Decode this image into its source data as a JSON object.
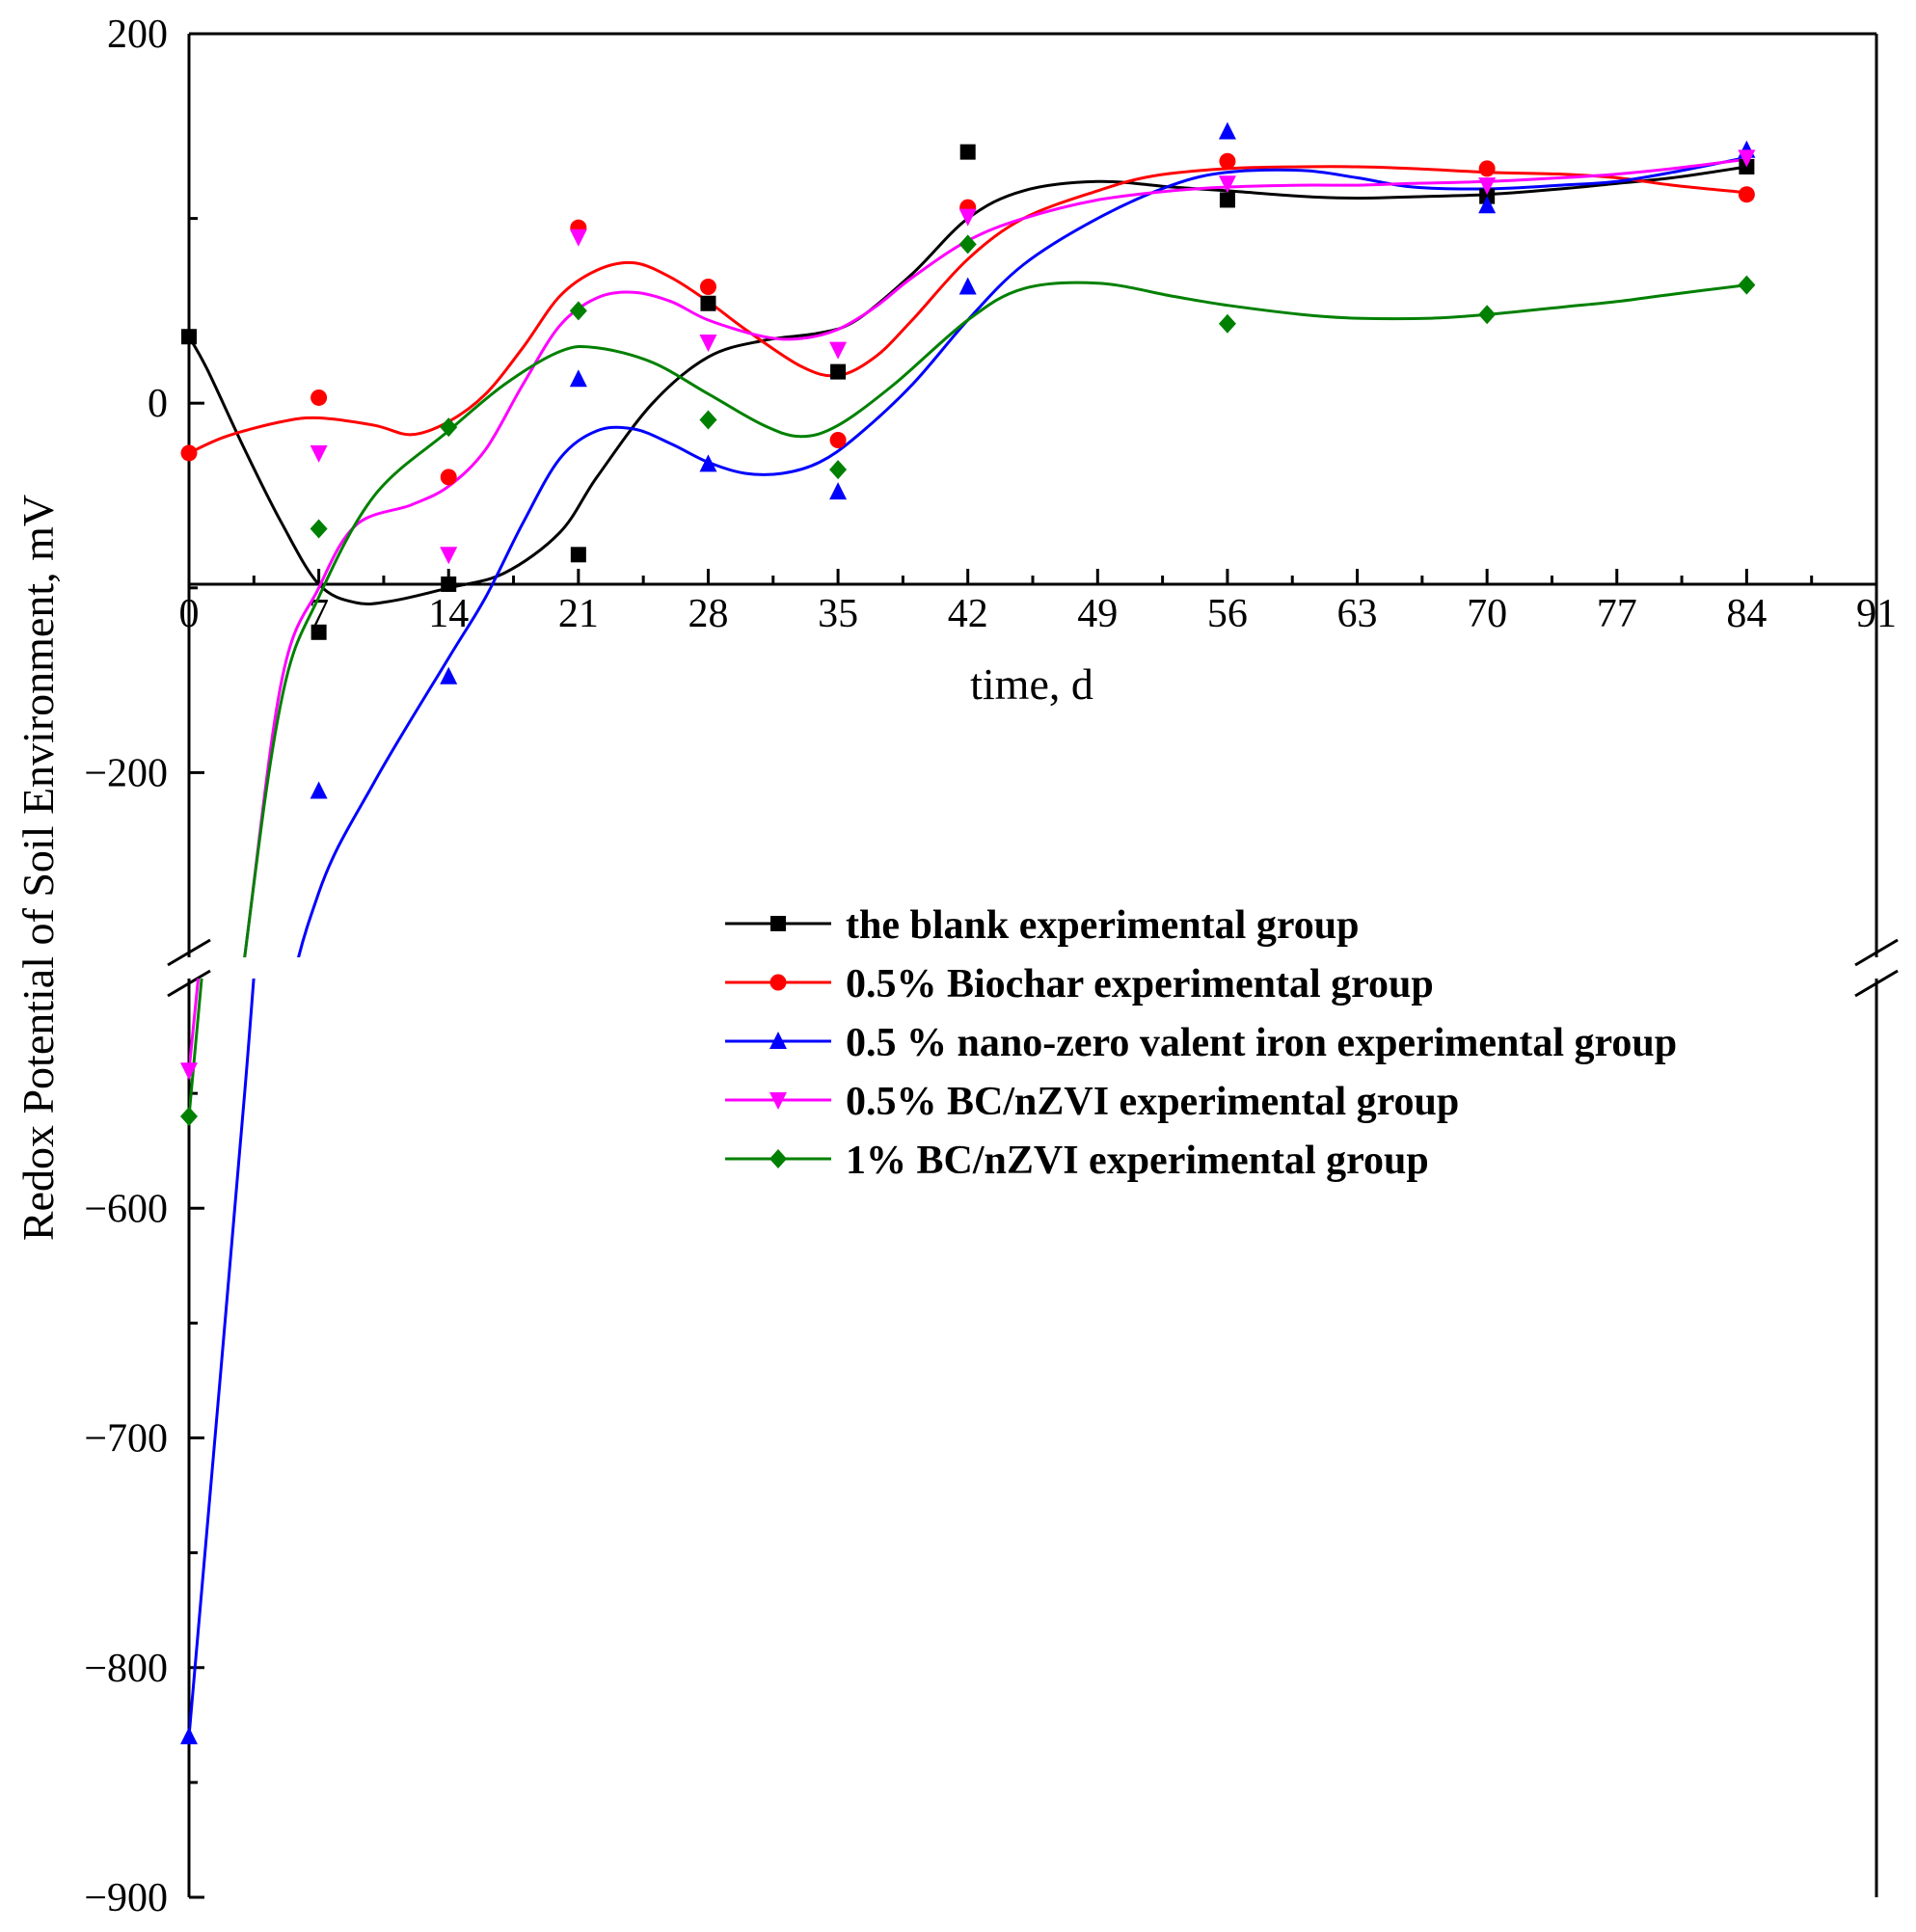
{
  "chart_data": {
    "type": "line",
    "title": "",
    "xlabel": "time, d",
    "ylabel": "Redox Potential of Soil Environment, mV",
    "x_ticks": [
      "0",
      "7",
      "14",
      "21",
      "28",
      "35",
      "42",
      "49",
      "56",
      "63",
      "70",
      "77",
      "84",
      "91"
    ],
    "x_tick_values": [
      0,
      7,
      14,
      21,
      28,
      35,
      42,
      49,
      56,
      63,
      70,
      77,
      84,
      91
    ],
    "xlim": [
      0,
      91
    ],
    "y_axis_break": true,
    "ylim_upper": [
      -300,
      200
    ],
    "ylim_lower": [
      -900,
      -500
    ],
    "y_ticks_upper": [
      "200",
      "0",
      "−200"
    ],
    "y_tick_values_upper": [
      200,
      0,
      -200
    ],
    "y_ticks_lower": [
      "−600",
      "−700",
      "−800",
      "−900"
    ],
    "y_tick_values_lower": [
      -600,
      -700,
      -800,
      -900
    ],
    "legend_position": "center-right",
    "x": [
      0,
      7,
      14,
      21,
      28,
      35,
      42,
      56,
      70,
      84
    ],
    "series": [
      {
        "name": "the blank experimental group",
        "color": "#000000",
        "marker": "square",
        "values": [
          36,
          -124,
          -98,
          -82,
          54,
          17,
          136,
          110,
          112,
          128
        ],
        "curve": [
          [
            0,
            36
          ],
          [
            1,
            18
          ],
          [
            3,
            -25
          ],
          [
            5,
            -65
          ],
          [
            7,
            -98
          ],
          [
            9,
            -108
          ],
          [
            11,
            -107
          ],
          [
            14,
            -100
          ],
          [
            17,
            -92
          ],
          [
            20,
            -70
          ],
          [
            22,
            -40
          ],
          [
            25,
            0
          ],
          [
            28,
            25
          ],
          [
            31,
            34
          ],
          [
            34,
            38
          ],
          [
            36,
            45
          ],
          [
            39,
            70
          ],
          [
            42,
            100
          ],
          [
            45,
            115
          ],
          [
            49,
            120
          ],
          [
            53,
            117
          ],
          [
            56,
            115
          ],
          [
            60,
            112
          ],
          [
            63,
            111
          ],
          [
            67,
            112
          ],
          [
            70,
            113
          ],
          [
            74,
            116
          ],
          [
            77,
            119
          ],
          [
            80,
            122
          ],
          [
            84,
            128
          ]
        ]
      },
      {
        "name": "0.5% Biochar experimental group",
        "color": "#ff0000",
        "marker": "circle",
        "values": [
          -27,
          3,
          -40,
          95,
          63,
          -20,
          106,
          131,
          127,
          113
        ],
        "curve": [
          [
            0,
            -27
          ],
          [
            2,
            -18
          ],
          [
            5,
            -10
          ],
          [
            7,
            -8
          ],
          [
            10,
            -12
          ],
          [
            12,
            -17
          ],
          [
            14,
            -10
          ],
          [
            16,
            5
          ],
          [
            18,
            30
          ],
          [
            20,
            58
          ],
          [
            22,
            72
          ],
          [
            24,
            76
          ],
          [
            26,
            68
          ],
          [
            28,
            55
          ],
          [
            30,
            40
          ],
          [
            33,
            20
          ],
          [
            35,
            15
          ],
          [
            37,
            25
          ],
          [
            39,
            45
          ],
          [
            42,
            78
          ],
          [
            45,
            100
          ],
          [
            49,
            115
          ],
          [
            52,
            123
          ],
          [
            56,
            127
          ],
          [
            60,
            128
          ],
          [
            63,
            128
          ],
          [
            66,
            127
          ],
          [
            70,
            125
          ],
          [
            74,
            124
          ],
          [
            77,
            122
          ],
          [
            80,
            118
          ],
          [
            84,
            114
          ]
        ]
      },
      {
        "name": "0.5 % nano-zero valent iron experimental group",
        "color": "#0000ff",
        "marker": "triangle-up",
        "values": [
          -830,
          -210,
          -148,
          13,
          -33,
          -48,
          63,
          147,
          107,
          137
        ],
        "curve": [
          [
            0,
            -830
          ],
          [
            3,
            -550
          ],
          [
            5,
            -350
          ],
          [
            7,
            -265
          ],
          [
            10,
            -205
          ],
          [
            14,
            -138
          ],
          [
            16,
            -105
          ],
          [
            18,
            -65
          ],
          [
            20,
            -30
          ],
          [
            22,
            -15
          ],
          [
            24,
            -14
          ],
          [
            26,
            -22
          ],
          [
            28,
            -32
          ],
          [
            30,
            -38
          ],
          [
            32,
            -38
          ],
          [
            34,
            -32
          ],
          [
            36,
            -18
          ],
          [
            39,
            10
          ],
          [
            42,
            45
          ],
          [
            45,
            75
          ],
          [
            49,
            100
          ],
          [
            53,
            118
          ],
          [
            56,
            125
          ],
          [
            60,
            126
          ],
          [
            63,
            122
          ],
          [
            66,
            117
          ],
          [
            70,
            116
          ],
          [
            74,
            118
          ],
          [
            77,
            120
          ],
          [
            80,
            125
          ],
          [
            84,
            133
          ]
        ]
      },
      {
        "name": "0.5% BC/nZVI experimental group",
        "color": "#ff00ff",
        "marker": "triangle-down",
        "values": [
          -540,
          -27,
          -82,
          90,
          33,
          29,
          101,
          119,
          118,
          133
        ],
        "curve": [
          [
            0,
            -540
          ],
          [
            3,
            -300
          ],
          [
            5,
            -150
          ],
          [
            7,
            -100
          ],
          [
            9,
            -66
          ],
          [
            12,
            -55
          ],
          [
            14,
            -45
          ],
          [
            16,
            -25
          ],
          [
            18,
            10
          ],
          [
            20,
            42
          ],
          [
            22,
            57
          ],
          [
            24,
            60
          ],
          [
            26,
            55
          ],
          [
            28,
            45
          ],
          [
            31,
            36
          ],
          [
            33,
            35
          ],
          [
            35,
            40
          ],
          [
            37,
            52
          ],
          [
            39,
            68
          ],
          [
            42,
            88
          ],
          [
            45,
            100
          ],
          [
            49,
            110
          ],
          [
            53,
            115
          ],
          [
            56,
            117
          ],
          [
            60,
            118
          ],
          [
            63,
            118
          ],
          [
            66,
            119
          ],
          [
            70,
            120
          ],
          [
            74,
            122
          ],
          [
            77,
            124
          ],
          [
            80,
            127
          ],
          [
            84,
            132
          ]
        ]
      },
      {
        "name": "1% BC/nZVI experimental group",
        "color": "#008000",
        "marker": "diamond",
        "values": [
          -560,
          -68,
          -13,
          50,
          -9,
          -36,
          86,
          43,
          48,
          64
        ],
        "curve": [
          [
            0,
            -560
          ],
          [
            3,
            -300
          ],
          [
            5,
            -160
          ],
          [
            7,
            -105
          ],
          [
            10,
            -50
          ],
          [
            14,
            -15
          ],
          [
            17,
            10
          ],
          [
            20,
            28
          ],
          [
            22,
            30
          ],
          [
            25,
            22
          ],
          [
            28,
            5
          ],
          [
            31,
            -12
          ],
          [
            33,
            -18
          ],
          [
            35,
            -12
          ],
          [
            38,
            10
          ],
          [
            42,
            45
          ],
          [
            45,
            62
          ],
          [
            49,
            65
          ],
          [
            53,
            58
          ],
          [
            56,
            53
          ],
          [
            60,
            48
          ],
          [
            63,
            46
          ],
          [
            67,
            46
          ],
          [
            70,
            48
          ],
          [
            74,
            52
          ],
          [
            77,
            55
          ],
          [
            80,
            59
          ],
          [
            84,
            64
          ]
        ]
      }
    ]
  }
}
